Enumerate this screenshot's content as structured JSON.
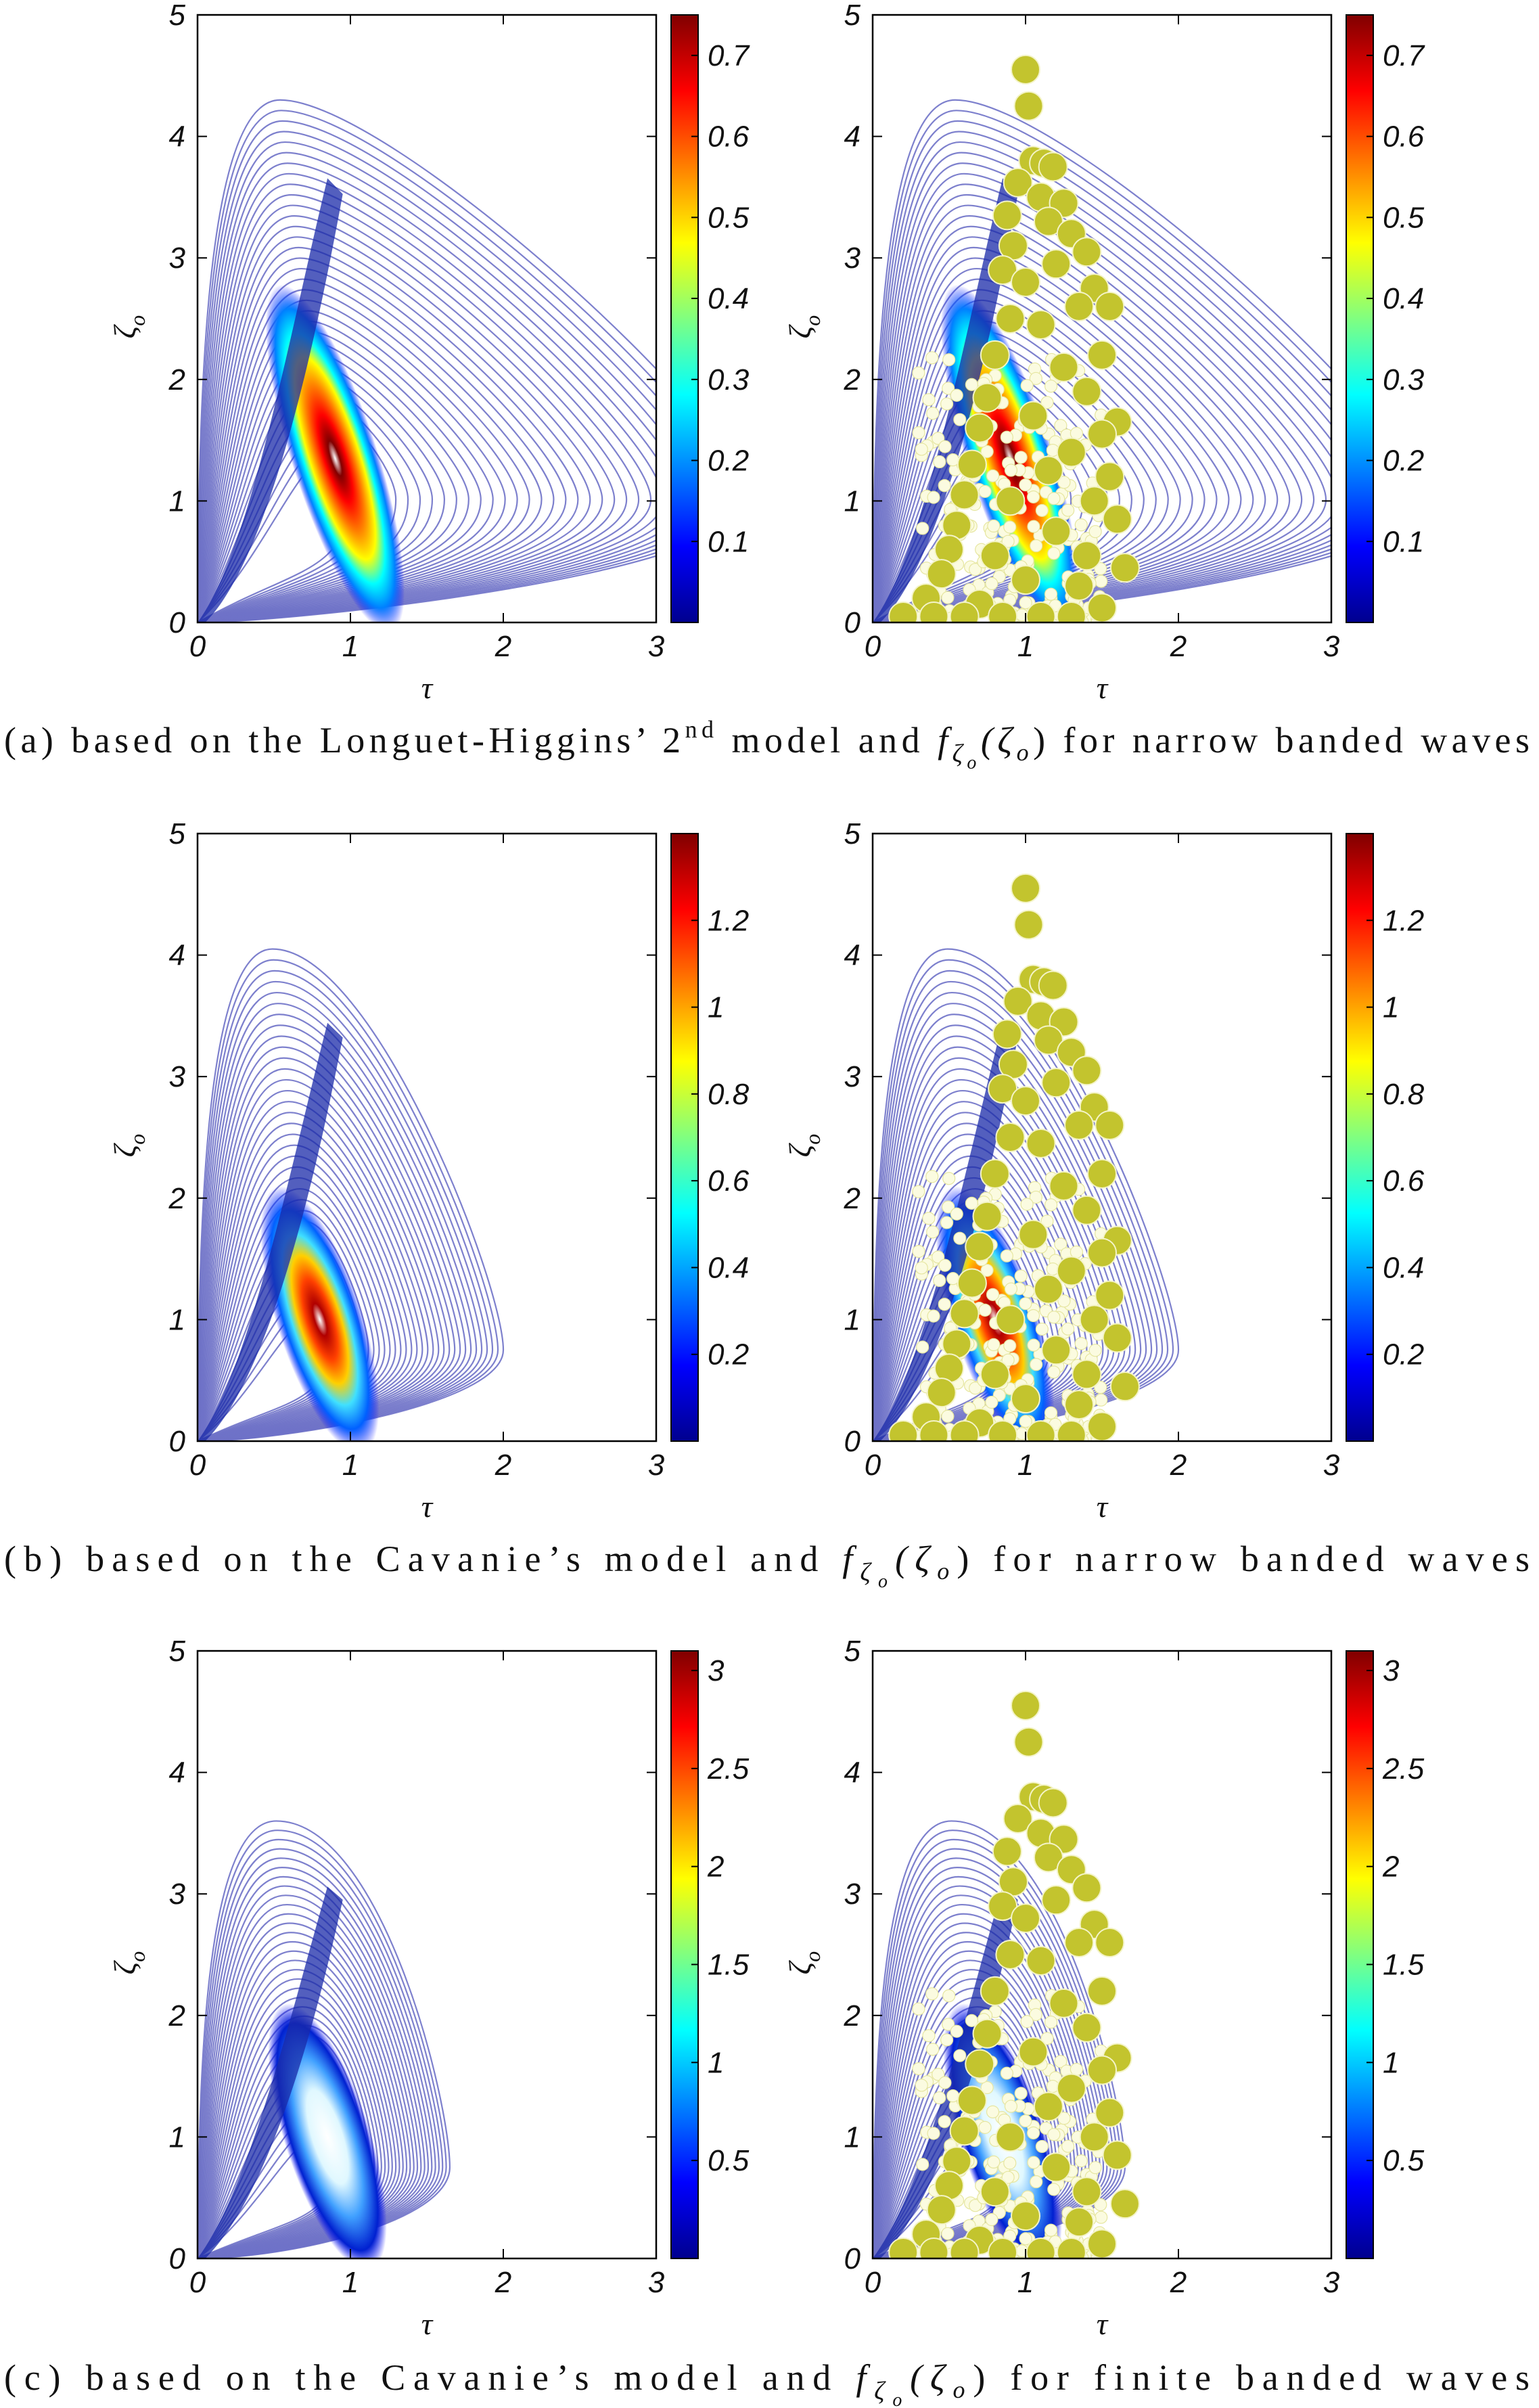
{
  "figure_domain": "Chart",
  "axis_labels": {
    "x": "τ",
    "y": "ζ",
    "y_sub": "o"
  },
  "captions": [
    {
      "prefix": "(a)  based  on  the  Longuet-Higgins’  2",
      "sup": "nd",
      "mid": "  model  and  ",
      "f": "f",
      "fsub": "ζ",
      "fsubsub": "o",
      "arg": "(ζ",
      "argsub": "o",
      "close": ")",
      "suffix": "  for  narrow  banded  waves"
    },
    {
      "prefix": "(b)  based  on  the  Cavanie’s  model  and  ",
      "sup": "",
      "mid": "",
      "f": "f",
      "fsub": "ζ",
      "fsubsub": "o",
      "arg": "(ζ",
      "argsub": "o",
      "close": ")",
      "suffix": "  for  narrow  banded  waves"
    },
    {
      "prefix": "(c)  based  on  the  Cavanie’s  model  and  ",
      "sup": "",
      "mid": "",
      "f": "f",
      "fsub": "ζ",
      "fsubsub": "o",
      "arg": "(ζ",
      "argsub": "o",
      "close": ")",
      "suffix": "  for  finite  banded  waves"
    }
  ],
  "colors": {
    "contour_outer": "#6f72c8",
    "scatter_fill": "#c3c42e",
    "scatter_edge": "#f4f4c8",
    "colormap": [
      "#00008f",
      "#0000ff",
      "#0080ff",
      "#00ffff",
      "#80ff80",
      "#ffff00",
      "#ff8000",
      "#ff0000",
      "#800000"
    ]
  },
  "chart_data": [
    {
      "id": "a-left",
      "type": "contour",
      "row": "a",
      "model": "Longuet-Higgins 2nd model",
      "xlabel": "τ",
      "ylabel": "ζo",
      "xlim": [
        0,
        3
      ],
      "ylim": [
        0,
        5
      ],
      "xticks": [
        "0",
        "1",
        "2",
        "3"
      ],
      "yticks": [
        "0",
        "1",
        "2",
        "3",
        "4",
        "5"
      ],
      "peak": {
        "tau": 0.9,
        "zeta": 1.35,
        "density": 0.74
      },
      "outer_contour_max_zeta": 4.3,
      "open_contours_at_tau": 3,
      "colorbar": {
        "range": [
          0,
          0.75
        ],
        "ticks": [
          "0.1",
          "0.2",
          "0.3",
          "0.4",
          "0.5",
          "0.6",
          "0.7"
        ],
        "values": [
          0.1,
          0.2,
          0.3,
          0.4,
          0.5,
          0.6,
          0.7
        ]
      },
      "scatter": false
    },
    {
      "id": "a-right",
      "type": "contour+scatter",
      "row": "a",
      "model": "Longuet-Higgins 2nd model",
      "xlabel": "τ",
      "ylabel": "ζo",
      "xlim": [
        0,
        3
      ],
      "ylim": [
        0,
        5
      ],
      "xticks": [
        "0",
        "1",
        "2",
        "3"
      ],
      "yticks": [
        "0",
        "1",
        "2",
        "3",
        "4",
        "5"
      ],
      "peak": {
        "tau": 0.9,
        "zeta": 1.35,
        "density": 0.74
      },
      "outer_contour_max_zeta": 4.3,
      "open_contours_at_tau": 3,
      "colorbar": {
        "range": [
          0,
          0.75
        ],
        "ticks": [
          "0.1",
          "0.2",
          "0.3",
          "0.4",
          "0.5",
          "0.6",
          "0.7"
        ],
        "values": [
          0.1,
          0.2,
          0.3,
          0.4,
          0.5,
          0.6,
          0.7
        ]
      },
      "scatter": true
    },
    {
      "id": "b-left",
      "type": "contour",
      "row": "b",
      "model": "Cavanie's model (narrow banded)",
      "xlabel": "τ",
      "ylabel": "ζo",
      "xlim": [
        0,
        3
      ],
      "ylim": [
        0,
        5
      ],
      "xticks": [
        "0",
        "1",
        "2",
        "3"
      ],
      "yticks": [
        "0",
        "1",
        "2",
        "3",
        "4",
        "5"
      ],
      "peak": {
        "tau": 0.8,
        "zeta": 1.0,
        "density": 1.38
      },
      "outer_contour_max_zeta": 4.05,
      "outer_contour_max_tau": 2.0,
      "colorbar": {
        "range": [
          0,
          1.4
        ],
        "ticks": [
          "0.2",
          "0.4",
          "0.6",
          "0.8",
          "1",
          "1.2"
        ],
        "values": [
          0.2,
          0.4,
          0.6,
          0.8,
          1.0,
          1.2
        ]
      },
      "scatter": false
    },
    {
      "id": "b-right",
      "type": "contour+scatter",
      "row": "b",
      "model": "Cavanie's model (narrow banded)",
      "xlabel": "τ",
      "ylabel": "ζo",
      "xlim": [
        0,
        3
      ],
      "ylim": [
        0,
        5
      ],
      "xticks": [
        "0",
        "1",
        "2",
        "3"
      ],
      "yticks": [
        "0",
        "1",
        "2",
        "3",
        "4",
        "5"
      ],
      "peak": {
        "tau": 0.8,
        "zeta": 1.0,
        "density": 1.38
      },
      "outer_contour_max_zeta": 4.05,
      "outer_contour_max_tau": 2.0,
      "colorbar": {
        "range": [
          0,
          1.4
        ],
        "ticks": [
          "0.2",
          "0.4",
          "0.6",
          "0.8",
          "1",
          "1.2"
        ],
        "values": [
          0.2,
          0.4,
          0.6,
          0.8,
          1.0,
          1.2
        ]
      },
      "scatter": true
    },
    {
      "id": "c-left",
      "type": "contour",
      "row": "c",
      "model": "Cavanie's model (finite banded)",
      "xlabel": "τ",
      "ylabel": "ζo",
      "xlim": [
        0,
        3
      ],
      "ylim": [
        0,
        5
      ],
      "xticks": [
        "0",
        "1",
        "2",
        "3"
      ],
      "yticks": [
        "0",
        "1",
        "2",
        "3",
        "4",
        "5"
      ],
      "peak": {
        "tau": 0.85,
        "zeta": 1.0,
        "density": 3.1
      },
      "outer_contour_max_zeta": 3.6,
      "outer_contour_max_tau": 1.65,
      "colorbar": {
        "range": [
          0,
          3.1
        ],
        "ticks": [
          "0.5",
          "1",
          "1.5",
          "2",
          "2.5",
          "3"
        ],
        "values": [
          0.5,
          1.0,
          1.5,
          2.0,
          2.5,
          3.0
        ]
      },
      "scatter": false
    },
    {
      "id": "c-right",
      "type": "contour+scatter",
      "row": "c",
      "model": "Cavanie's model (finite banded)",
      "xlabel": "τ",
      "ylabel": "ζo",
      "xlim": [
        0,
        3
      ],
      "ylim": [
        0,
        5
      ],
      "xticks": [
        "0",
        "1",
        "2",
        "3"
      ],
      "yticks": [
        "0",
        "1",
        "2",
        "3",
        "4",
        "5"
      ],
      "peak": {
        "tau": 0.85,
        "zeta": 1.0,
        "density": 3.1
      },
      "outer_contour_max_zeta": 3.6,
      "outer_contour_max_tau": 1.65,
      "colorbar": {
        "range": [
          0,
          3.1
        ],
        "ticks": [
          "0.5",
          "1",
          "1.5",
          "2",
          "2.5",
          "3"
        ],
        "values": [
          0.5,
          1.0,
          1.5,
          2.0,
          2.5,
          3.0
        ]
      },
      "scatter": true
    }
  ],
  "scatter_points_approx": [
    [
      1.0,
      4.55
    ],
    [
      1.02,
      4.25
    ],
    [
      1.05,
      3.8
    ],
    [
      1.12,
      3.78
    ],
    [
      1.18,
      3.75
    ],
    [
      0.95,
      3.62
    ],
    [
      1.1,
      3.5
    ],
    [
      1.25,
      3.45
    ],
    [
      0.88,
      3.35
    ],
    [
      1.15,
      3.3
    ],
    [
      1.3,
      3.2
    ],
    [
      1.4,
      3.05
    ],
    [
      0.92,
      3.1
    ],
    [
      1.2,
      2.95
    ],
    [
      1.45,
      2.75
    ],
    [
      0.85,
      2.9
    ],
    [
      1.0,
      2.8
    ],
    [
      1.35,
      2.6
    ],
    [
      1.55,
      2.6
    ],
    [
      0.9,
      2.5
    ],
    [
      1.1,
      2.45
    ],
    [
      1.5,
      2.2
    ],
    [
      1.6,
      1.65
    ],
    [
      0.8,
      2.2
    ],
    [
      1.25,
      2.1
    ],
    [
      1.4,
      1.9
    ],
    [
      0.75,
      1.85
    ],
    [
      1.05,
      1.7
    ],
    [
      1.5,
      1.55
    ],
    [
      0.7,
      1.6
    ],
    [
      1.3,
      1.4
    ],
    [
      1.55,
      1.2
    ],
    [
      0.65,
      1.3
    ],
    [
      1.15,
      1.25
    ],
    [
      1.45,
      1.0
    ],
    [
      0.6,
      1.05
    ],
    [
      0.9,
      1.0
    ],
    [
      1.6,
      0.85
    ],
    [
      0.55,
      0.8
    ],
    [
      1.2,
      0.75
    ],
    [
      1.4,
      0.55
    ],
    [
      0.5,
      0.6
    ],
    [
      0.8,
      0.55
    ],
    [
      1.65,
      0.45
    ],
    [
      0.45,
      0.4
    ],
    [
      1.0,
      0.35
    ],
    [
      1.35,
      0.3
    ],
    [
      0.35,
      0.2
    ],
    [
      0.7,
      0.15
    ],
    [
      1.5,
      0.12
    ],
    [
      0.2,
      0.05
    ],
    [
      0.4,
      0.05
    ],
    [
      0.6,
      0.05
    ],
    [
      0.85,
      0.05
    ],
    [
      1.1,
      0.05
    ],
    [
      1.3,
      0.05
    ]
  ]
}
